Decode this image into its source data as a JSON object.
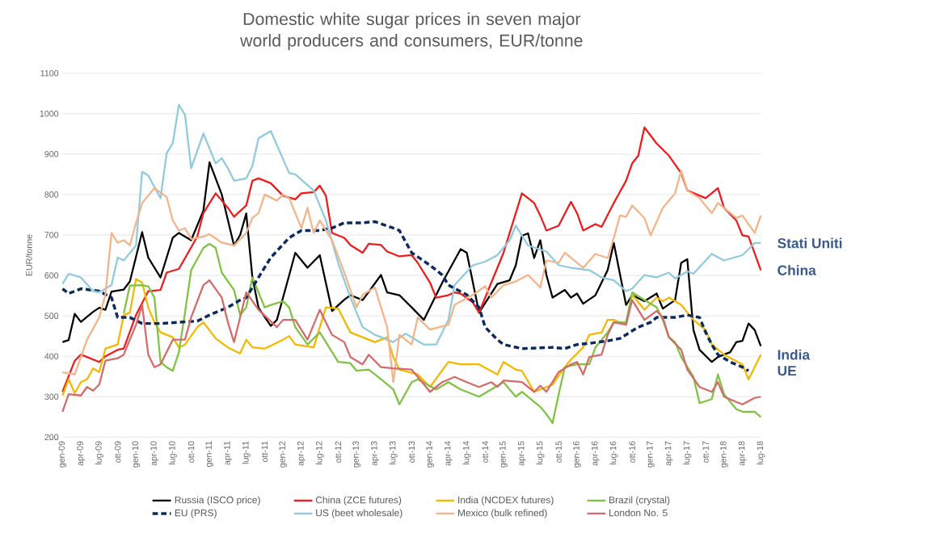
{
  "chart_data": {
    "type": "line",
    "title": "Domestic white sugar prices in seven major world producers and consumers, EUR/tonne",
    "ylabel": "EUR/tonne",
    "xlim": [
      "2009-01",
      "2018-07"
    ],
    "xticks": [
      {
        "value": "2009-01",
        "label": "gen-09"
      },
      {
        "value": "2009-04",
        "label": "apr-09"
      },
      {
        "value": "2009-07",
        "label": "lug-09"
      },
      {
        "value": "2009-10",
        "label": "ott-09"
      },
      {
        "value": "2010-01",
        "label": "gen-10"
      },
      {
        "value": "2010-04",
        "label": "apr-10"
      },
      {
        "value": "2010-07",
        "label": "lug-10"
      },
      {
        "value": "2010-10",
        "label": "ott-10"
      },
      {
        "value": "2011-01",
        "label": "gen-11"
      },
      {
        "value": "2011-04",
        "label": "apr-11"
      },
      {
        "value": "2011-07",
        "label": "lug-11"
      },
      {
        "value": "2011-10",
        "label": "ott-11"
      },
      {
        "value": "2012-01",
        "label": "gen-12"
      },
      {
        "value": "2012-04",
        "label": "apr-12"
      },
      {
        "value": "2012-07",
        "label": "lug-12"
      },
      {
        "value": "2012-10",
        "label": "ott-12"
      },
      {
        "value": "2013-01",
        "label": "gen-13"
      },
      {
        "value": "2013-04",
        "label": "apr-13"
      },
      {
        "value": "2013-07",
        "label": "lug-13"
      },
      {
        "value": "2013-10",
        "label": "ott-13"
      },
      {
        "value": "2014-01",
        "label": "gen-14"
      },
      {
        "value": "2014-04",
        "label": "apr-14"
      },
      {
        "value": "2014-07",
        "label": "lug-14"
      },
      {
        "value": "2014-10",
        "label": "ott-14"
      },
      {
        "value": "2015-01",
        "label": "gen-15"
      },
      {
        "value": "2015-04",
        "label": "apr-15"
      },
      {
        "value": "2015-07",
        "label": "lug-15"
      },
      {
        "value": "2015-10",
        "label": "ott-15"
      },
      {
        "value": "2016-01",
        "label": "gen-16"
      },
      {
        "value": "2016-04",
        "label": "apr-16"
      },
      {
        "value": "2016-07",
        "label": "lug-16"
      },
      {
        "value": "2016-10",
        "label": "ott-16"
      },
      {
        "value": "2017-01",
        "label": "gen-17"
      },
      {
        "value": "2017-04",
        "label": "apr-17"
      },
      {
        "value": "2017-07",
        "label": "lug-17"
      },
      {
        "value": "2017-10",
        "label": "ott-17"
      },
      {
        "value": "2018-01",
        "label": "gen-18"
      },
      {
        "value": "2018-04",
        "label": "apr-18"
      },
      {
        "value": "2018-07",
        "label": "lug-18"
      }
    ],
    "ylim": [
      200,
      1100
    ],
    "yticks": [
      200,
      300,
      400,
      500,
      600,
      700,
      800,
      900,
      1000,
      1100
    ],
    "grid": "y",
    "legend": "bottom",
    "series": [
      {
        "name": "Russia (ISCO price)",
        "color": "#000000",
        "x": [
          "2009-01",
          "2009-02",
          "2009-03",
          "2009-04",
          "2009-06",
          "2009-07",
          "2009-08",
          "2009-09",
          "2009-11",
          "2009-12",
          "2010-02",
          "2010-03",
          "2010-05",
          "2010-07",
          "2010-08",
          "2010-10",
          "2010-12",
          "2011-01",
          "2011-03",
          "2011-05",
          "2011-06",
          "2011-07",
          "2011-08",
          "2011-09",
          "2011-11",
          "2011-12",
          "2012-02",
          "2012-03",
          "2012-05",
          "2012-07",
          "2012-09",
          "2012-11",
          "2012-12",
          "2013-02",
          "2013-05",
          "2013-06",
          "2013-08",
          "2013-10",
          "2013-12",
          "2014-03",
          "2014-06",
          "2014-07",
          "2014-09",
          "2014-12",
          "2015-02",
          "2015-03",
          "2015-04",
          "2015-05",
          "2015-06",
          "2015-07",
          "2015-08",
          "2015-09",
          "2015-11",
          "2015-12",
          "2016-01",
          "2016-02",
          "2016-04",
          "2016-06",
          "2016-07",
          "2016-09",
          "2016-10",
          "2016-12",
          "2017-02",
          "2017-03",
          "2017-05",
          "2017-06",
          "2017-07",
          "2017-08",
          "2017-09",
          "2017-11",
          "2017-12",
          "2018-02",
          "2018-03",
          "2018-04",
          "2018-05",
          "2018-06",
          "2018-07"
        ],
        "values": [
          435,
          440,
          505,
          485,
          510,
          520,
          515,
          560,
          565,
          585,
          707,
          644,
          595,
          693,
          705,
          687,
          760,
          880,
          800,
          674,
          700,
          753,
          595,
          520,
          475,
          490,
          600,
          656,
          619,
          650,
          512,
          540,
          551,
          539,
          601,
          558,
          551,
          521,
          490,
          582,
          665,
          656,
          508,
          579,
          588,
          625,
          698,
          704,
          643,
          687,
          601,
          545,
          564,
          545,
          555,
          530,
          551,
          613,
          680,
          527,
          551,
          536,
          555,
          518,
          539,
          631,
          640,
          465,
          416,
          386,
          398,
          410,
          435,
          438,
          481,
          465,
          425
        ]
      },
      {
        "name": "China (ZCE futures)",
        "color": "#ee1c1c",
        "x": [
          "2009-01",
          "2009-03",
          "2009-04",
          "2009-07",
          "2009-08",
          "2009-10",
          "2009-11",
          "2010-01",
          "2010-03",
          "2010-05",
          "2010-06",
          "2010-08",
          "2010-11",
          "2010-12",
          "2011-02",
          "2011-04",
          "2011-05",
          "2011-07",
          "2011-08",
          "2011-09",
          "2011-11",
          "2012-01",
          "2012-03",
          "2012-04",
          "2012-06",
          "2012-07",
          "2012-08",
          "2012-09",
          "2012-11",
          "2012-12",
          "2013-02",
          "2013-03",
          "2013-05",
          "2013-06",
          "2013-08",
          "2013-10",
          "2013-11",
          "2014-01",
          "2014-02",
          "2014-04",
          "2014-05",
          "2014-06",
          "2014-08",
          "2014-09",
          "2014-11",
          "2015-01",
          "2015-02",
          "2015-04",
          "2015-06",
          "2015-07",
          "2015-08",
          "2015-10",
          "2015-12",
          "2016-01",
          "2016-02",
          "2016-04",
          "2016-05",
          "2016-07",
          "2016-09",
          "2016-10",
          "2016-11",
          "2016-12",
          "2017-02",
          "2017-04",
          "2017-06",
          "2017-07",
          "2017-10",
          "2017-12",
          "2018-01",
          "2018-03",
          "2018-04",
          "2018-05",
          "2018-07"
        ],
        "values": [
          312,
          389,
          404,
          386,
          400,
          416,
          419,
          502,
          561,
          564,
          607,
          616,
          696,
          754,
          803,
          767,
          745,
          773,
          834,
          840,
          828,
          797,
          788,
          803,
          806,
          822,
          797,
          705,
          693,
          675,
          656,
          678,
          675,
          659,
          647,
          650,
          631,
          582,
          545,
          551,
          558,
          555,
          533,
          508,
          582,
          656,
          705,
          803,
          779,
          748,
          711,
          723,
          782,
          754,
          711,
          727,
          720,
          779,
          834,
          877,
          896,
          966,
          926,
          896,
          853,
          810,
          791,
          816,
          767,
          736,
          699,
          696,
          613
        ]
      },
      {
        "name": "India (NCDEX futures)",
        "color": "#f5b800",
        "x": [
          "2009-01",
          "2009-02",
          "2009-03",
          "2009-04",
          "2009-05",
          "2009-06",
          "2009-07",
          "2009-08",
          "2009-10",
          "2009-11",
          "2009-12",
          "2010-01",
          "2010-02",
          "2010-03",
          "2010-04",
          "2010-05",
          "2010-07",
          "2010-08",
          "2010-09",
          "2010-11",
          "2010-12",
          "2011-02",
          "2011-04",
          "2011-06",
          "2011-07",
          "2011-08",
          "2011-10",
          "2012-01",
          "2012-02",
          "2012-03",
          "2012-06",
          "2012-08",
          "2012-10",
          "2012-12",
          "2013-02",
          "2013-04",
          "2013-06",
          "2013-07",
          "2013-08",
          "2013-11",
          "2014-01",
          "2014-04",
          "2014-06",
          "2014-09",
          "2014-12",
          "2015-01",
          "2015-03",
          "2015-04",
          "2015-06",
          "2015-08",
          "2015-09",
          "2015-11",
          "2015-12",
          "2016-02",
          "2016-03",
          "2016-05",
          "2016-06",
          "2016-07",
          "2016-09",
          "2016-10",
          "2016-12",
          "2017-02",
          "2017-03",
          "2017-04",
          "2017-06",
          "2017-08",
          "2017-10",
          "2017-11",
          "2018-01",
          "2018-04",
          "2018-05",
          "2018-07"
        ],
        "values": [
          303,
          343,
          309,
          336,
          343,
          370,
          361,
          419,
          429,
          502,
          508,
          591,
          582,
          521,
          484,
          459,
          447,
          422,
          429,
          472,
          484,
          444,
          422,
          407,
          441,
          422,
          419,
          441,
          450,
          429,
          422,
          521,
          518,
          459,
          447,
          435,
          447,
          398,
          367,
          355,
          324,
          386,
          380,
          380,
          355,
          386,
          367,
          364,
          312,
          324,
          330,
          373,
          392,
          422,
          453,
          459,
          490,
          490,
          478,
          552,
          515,
          545,
          536,
          545,
          527,
          490,
          465,
          429,
          404,
          380,
          343,
          404
        ]
      },
      {
        "name": "Brazil (crystal)",
        "color": "#80c342",
        "x": [
          "2009-11",
          "2009-12",
          "2010-02",
          "2010-03",
          "2010-04",
          "2010-05",
          "2010-06",
          "2010-07",
          "2010-08",
          "2010-09",
          "2010-10",
          "2010-12",
          "2011-01",
          "2011-02",
          "2011-03",
          "2011-05",
          "2011-06",
          "2011-07",
          "2011-08",
          "2011-10",
          "2011-11",
          "2012-01",
          "2012-02",
          "2012-03",
          "2012-05",
          "2012-07",
          "2012-08",
          "2012-10",
          "2012-12",
          "2013-01",
          "2013-03",
          "2013-05",
          "2013-07",
          "2013-08",
          "2013-10",
          "2013-11",
          "2014-02",
          "2014-04",
          "2014-06",
          "2014-09",
          "2014-11",
          "2015-01",
          "2015-03",
          "2015-04",
          "2015-07",
          "2015-08",
          "2015-09",
          "2015-10",
          "2015-11",
          "2016-01",
          "2016-03",
          "2016-04",
          "2016-06",
          "2016-07",
          "2016-09",
          "2016-10",
          "2016-12",
          "2017-02",
          "2017-03",
          "2017-04",
          "2017-05",
          "2017-06",
          "2017-08",
          "2017-09",
          "2017-11",
          "2017-12",
          "2018-01",
          "2018-03",
          "2018-04",
          "2018-05",
          "2018-06",
          "2018-07"
        ],
        "values": [
          506,
          575,
          576,
          573,
          545,
          386,
          373,
          364,
          410,
          508,
          613,
          668,
          678,
          668,
          607,
          564,
          502,
          521,
          595,
          521,
          527,
          536,
          521,
          472,
          429,
          459,
          435,
          386,
          383,
          364,
          367,
          343,
          318,
          281,
          336,
          343,
          318,
          336,
          318,
          300,
          318,
          336,
          300,
          312,
          275,
          257,
          235,
          306,
          373,
          380,
          380,
          422,
          459,
          484,
          484,
          558,
          539,
          521,
          490,
          447,
          435,
          398,
          349,
          284,
          294,
          355,
          306,
          269,
          263,
          263,
          263,
          250
        ]
      },
      {
        "name": "EU (PRS)",
        "color": "#0c2a5e",
        "line_style": "dashed",
        "x": [
          "2009-01",
          "2009-02",
          "2009-04",
          "2009-07",
          "2009-09",
          "2009-10",
          "2009-12",
          "2010-02",
          "2010-05",
          "2010-08",
          "2010-11",
          "2011-01",
          "2011-04",
          "2011-06",
          "2011-07",
          "2011-09",
          "2011-11",
          "2012-02",
          "2012-04",
          "2012-07",
          "2012-09",
          "2012-11",
          "2013-02",
          "2013-04",
          "2013-07",
          "2013-08",
          "2013-10",
          "2014-01",
          "2014-03",
          "2014-04",
          "2014-07",
          "2014-09",
          "2014-10",
          "2014-12",
          "2015-01",
          "2015-04",
          "2015-09",
          "2015-11",
          "2016-01",
          "2016-03",
          "2016-06",
          "2016-08",
          "2016-11",
          "2017-01",
          "2017-02",
          "2017-05",
          "2017-07",
          "2017-09",
          "2017-10",
          "2017-11",
          "2017-12",
          "2018-02",
          "2018-04",
          "2018-05"
        ],
        "values": [
          567,
          555,
          567,
          561,
          545,
          496,
          496,
          481,
          481,
          484,
          487,
          502,
          521,
          539,
          545,
          595,
          644,
          693,
          711,
          711,
          717,
          730,
          730,
          733,
          717,
          711,
          656,
          625,
          601,
          576,
          552,
          521,
          472,
          441,
          429,
          419,
          422,
          419,
          429,
          432,
          438,
          444,
          472,
          484,
          496,
          496,
          502,
          496,
          459,
          429,
          404,
          386,
          373,
          364
        ]
      },
      {
        "name": "US (beet wholesale)",
        "color": "#8fcbdd",
        "x": [
          "2009-01",
          "2009-02",
          "2009-04",
          "2009-06",
          "2009-07",
          "2009-09",
          "2009-10",
          "2009-11",
          "2010-01",
          "2010-02",
          "2010-03",
          "2010-05",
          "2010-06",
          "2010-07",
          "2010-08",
          "2010-09",
          "2010-10",
          "2010-12",
          "2011-02",
          "2011-03",
          "2011-04",
          "2011-05",
          "2011-07",
          "2011-08",
          "2011-09",
          "2011-11",
          "2012-02",
          "2012-03",
          "2012-06",
          "2012-08",
          "2012-10",
          "2012-12",
          "2013-02",
          "2013-04",
          "2013-07",
          "2013-09",
          "2013-12",
          "2014-02",
          "2014-04",
          "2014-05",
          "2014-08",
          "2014-10",
          "2014-12",
          "2015-02",
          "2015-03",
          "2015-05",
          "2015-08",
          "2015-10",
          "2015-12",
          "2016-03",
          "2016-05",
          "2016-07",
          "2016-09",
          "2016-10",
          "2016-12",
          "2017-02",
          "2017-04",
          "2017-05",
          "2017-07",
          "2017-08",
          "2017-10",
          "2017-11",
          "2018-01",
          "2018-04",
          "2018-06",
          "2018-07"
        ],
        "values": [
          579,
          604,
          595,
          561,
          558,
          576,
          644,
          637,
          674,
          856,
          847,
          791,
          902,
          927,
          1022,
          997,
          865,
          951,
          877,
          890,
          865,
          834,
          840,
          871,
          939,
          957,
          853,
          850,
          810,
          736,
          631,
          545,
          472,
          453,
          435,
          456,
          429,
          429,
          490,
          576,
          625,
          634,
          650,
          687,
          723,
          674,
          659,
          625,
          619,
          613,
          595,
          588,
          561,
          567,
          601,
          595,
          607,
          592,
          610,
          604,
          637,
          653,
          637,
          650,
          680,
          680
        ]
      },
      {
        "name": "Mexico (bulk refined)",
        "color": "#f3b48a",
        "x": [
          "2009-01",
          "2009-03",
          "2009-05",
          "2009-07",
          "2009-08",
          "2009-09",
          "2009-10",
          "2009-11",
          "2009-12",
          "2010-01",
          "2010-02",
          "2010-04",
          "2010-06",
          "2010-07",
          "2010-08",
          "2010-09",
          "2010-10",
          "2010-12",
          "2011-01",
          "2011-03",
          "2011-05",
          "2011-07",
          "2011-08",
          "2011-09",
          "2011-10",
          "2011-12",
          "2012-01",
          "2012-02",
          "2012-04",
          "2012-05",
          "2012-06",
          "2012-07",
          "2012-09",
          "2012-11",
          "2013-01",
          "2013-02",
          "2013-04",
          "2013-06",
          "2013-07",
          "2013-08",
          "2013-10",
          "2013-11",
          "2014-01",
          "2014-04",
          "2014-05",
          "2014-08",
          "2014-10",
          "2014-11",
          "2015-01",
          "2015-03",
          "2015-05",
          "2015-07",
          "2015-08",
          "2015-10",
          "2015-11",
          "2016-02",
          "2016-04",
          "2016-06",
          "2016-07",
          "2016-08",
          "2016-09",
          "2016-10",
          "2016-12",
          "2017-01",
          "2017-03",
          "2017-05",
          "2017-06",
          "2017-07",
          "2017-09",
          "2017-11",
          "2017-12",
          "2018-01",
          "2018-03",
          "2018-04",
          "2018-06",
          "2018-07"
        ],
        "values": [
          360,
          355,
          441,
          496,
          552,
          705,
          681,
          687,
          674,
          730,
          779,
          816,
          794,
          736,
          711,
          717,
          690,
          696,
          702,
          681,
          674,
          705,
          742,
          754,
          800,
          785,
          800,
          791,
          717,
          767,
          705,
          736,
          687,
          607,
          521,
          552,
          570,
          472,
          336,
          453,
          429,
          496,
          466,
          478,
          527,
          552,
          573,
          545,
          576,
          585,
          601,
          570,
          637,
          631,
          656,
          619,
          653,
          643,
          693,
          748,
          745,
          773,
          742,
          699,
          767,
          803,
          859,
          810,
          791,
          754,
          779,
          767,
          742,
          748,
          705,
          748
        ]
      },
      {
        "name": "London No. 5",
        "color": "#d46a6a",
        "x": [
          "2009-01",
          "2009-02",
          "2009-04",
          "2009-05",
          "2009-06",
          "2009-07",
          "2009-08",
          "2009-10",
          "2009-11",
          "2010-01",
          "2010-02",
          "2010-03",
          "2010-04",
          "2010-05",
          "2010-07",
          "2010-09",
          "2010-10",
          "2010-12",
          "2011-01",
          "2011-03",
          "2011-04",
          "2011-05",
          "2011-07",
          "2011-09",
          "2011-12",
          "2012-01",
          "2012-03",
          "2012-05",
          "2012-07",
          "2012-09",
          "2012-11",
          "2012-12",
          "2013-02",
          "2013-03",
          "2013-05",
          "2013-07",
          "2013-10",
          "2013-11",
          "2014-01",
          "2014-03",
          "2014-05",
          "2014-07",
          "2014-09",
          "2014-11",
          "2014-12",
          "2015-01",
          "2015-04",
          "2015-06",
          "2015-07",
          "2015-08",
          "2015-10",
          "2015-12",
          "2016-01",
          "2016-02",
          "2016-03",
          "2016-05",
          "2016-06",
          "2016-07",
          "2016-09",
          "2016-10",
          "2016-12",
          "2017-02",
          "2017-03",
          "2017-04",
          "2017-06",
          "2017-07",
          "2017-09",
          "2017-11",
          "2017-12",
          "2018-01",
          "2018-03",
          "2018-04",
          "2018-06",
          "2018-07"
        ],
        "values": [
          263,
          306,
          303,
          324,
          315,
          330,
          389,
          395,
          404,
          478,
          527,
          404,
          373,
          380,
          441,
          441,
          496,
          576,
          588,
          545,
          484,
          435,
          558,
          515,
          472,
          490,
          490,
          441,
          515,
          453,
          435,
          398,
          380,
          404,
          373,
          370,
          367,
          349,
          312,
          336,
          349,
          336,
          324,
          336,
          324,
          340,
          336,
          312,
          327,
          312,
          361,
          380,
          386,
          355,
          398,
          404,
          453,
          484,
          478,
          539,
          490,
          512,
          496,
          447,
          416,
          367,
          324,
          312,
          336,
          300,
          287,
          281,
          297,
          300
        ]
      }
    ],
    "annotations": [
      {
        "text": "Stati Uniti",
        "x": "2018-07",
        "y": 680
      },
      {
        "text": "China",
        "x": "2018-07",
        "y": 613
      },
      {
        "text": "India",
        "x": "2018-07",
        "y": 404
      },
      {
        "text": "UE",
        "x": "2018-05",
        "y": 364
      }
    ]
  }
}
